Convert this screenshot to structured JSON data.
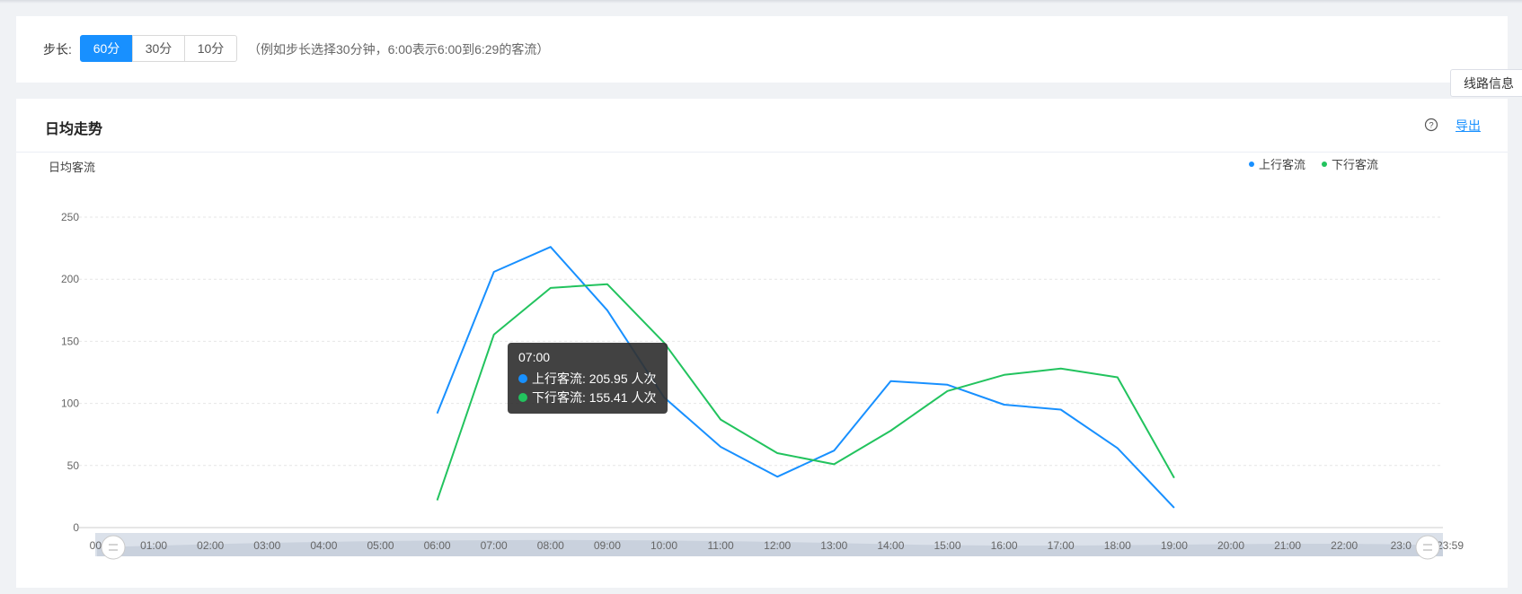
{
  "step": {
    "label": "步长:",
    "options": [
      {
        "label": "60分",
        "active": true
      },
      {
        "label": "30分",
        "active": false
      },
      {
        "label": "10分",
        "active": false
      }
    ],
    "hint": "（例如步长选择30分钟，6:00表示6:00到6:29的客流）"
  },
  "route_tab": "线路信息",
  "card": {
    "title": "日均走势",
    "help_icon": "question-circle-icon",
    "export_label": "导出"
  },
  "tooltip": {
    "time": "07:00",
    "rows": [
      {
        "text": "上行客流: 205.95 人次",
        "color": "#1890ff"
      },
      {
        "text": "下行客流: 155.41 人次",
        "color": "#22c35e"
      }
    ]
  },
  "chart_data": {
    "type": "line",
    "ylabel": "日均客流",
    "ylim": [
      0,
      250
    ],
    "yticks": [
      0,
      50,
      100,
      150,
      200,
      250
    ],
    "categories": [
      "00:00",
      "01:00",
      "02:00",
      "03:00",
      "04:00",
      "05:00",
      "06:00",
      "07:00",
      "08:00",
      "09:00",
      "10:00",
      "11:00",
      "12:00",
      "13:00",
      "14:00",
      "15:00",
      "16:00",
      "17:00",
      "18:00",
      "19:00",
      "20:00",
      "21:00",
      "22:00",
      "23:00"
    ],
    "x_tick_labels": [
      "00:",
      "01:00",
      "02:00",
      "03:00",
      "04:00",
      "05:00",
      "06:00",
      "07:00",
      "08:00",
      "09:00",
      "10:00",
      "11:00",
      "12:00",
      "13:00",
      "14:00",
      "15:00",
      "16:00",
      "17:00",
      "18:00",
      "19:00",
      "20:00",
      "21:00",
      "22:00",
      "23:0"
    ],
    "x_end_label": "23:59",
    "grid": true,
    "legend_position": "top-right",
    "series": [
      {
        "name": "上行客流",
        "color": "#1890ff",
        "values": [
          null,
          null,
          null,
          null,
          null,
          null,
          92,
          205.95,
          226,
          175,
          105,
          65,
          41,
          62,
          118,
          115,
          99,
          95,
          64,
          16,
          null,
          null,
          null,
          null
        ]
      },
      {
        "name": "下行客流",
        "color": "#22c35e",
        "values": [
          null,
          null,
          null,
          null,
          null,
          null,
          22,
          155.41,
          193,
          196,
          149,
          87,
          60,
          51,
          78,
          110,
          123,
          128,
          121,
          40,
          null,
          null,
          null,
          null
        ]
      }
    ],
    "zoom_range": [
      "00:00",
      "23:59"
    ]
  }
}
